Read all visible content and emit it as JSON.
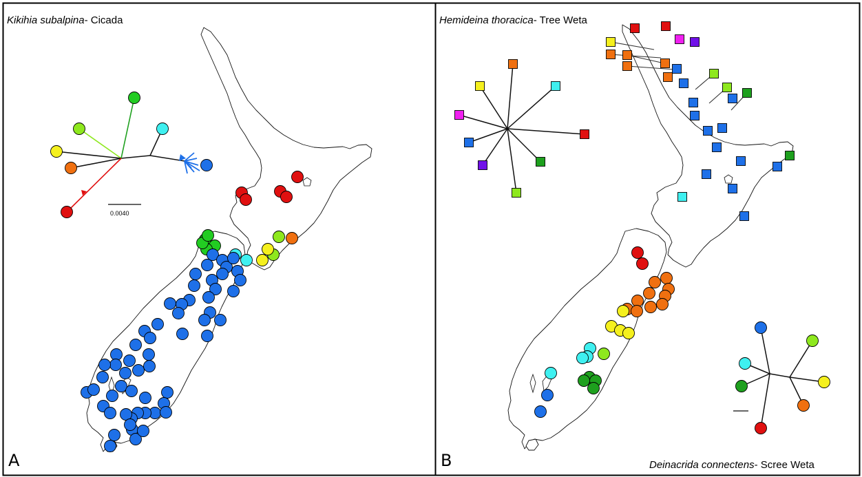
{
  "panels": [
    {
      "label": "A",
      "species": "Kikihia subalpina",
      "common": "- Cicada",
      "scale_label": "0.0040"
    },
    {
      "label": "B",
      "species": "Hemideina thoracica",
      "common": "- Tree Weta",
      "species2": "Deinacrida connectens",
      "common2": "- Scree Weta"
    }
  ],
  "colors": {
    "red": "#e01010",
    "orange": "#f07010",
    "yellow": "#f5f01e",
    "lime": "#8ee81e",
    "green": "#1ea01e",
    "bright_green": "#22cc22",
    "cyan": "#3ff0f0",
    "blue": "#1e70e8",
    "magenta": "#f020f0",
    "purple": "#7010e8"
  },
  "marker_shapes": {
    "panel_a": "circle",
    "panel_b_north": "square",
    "panel_b_south": "circle"
  }
}
